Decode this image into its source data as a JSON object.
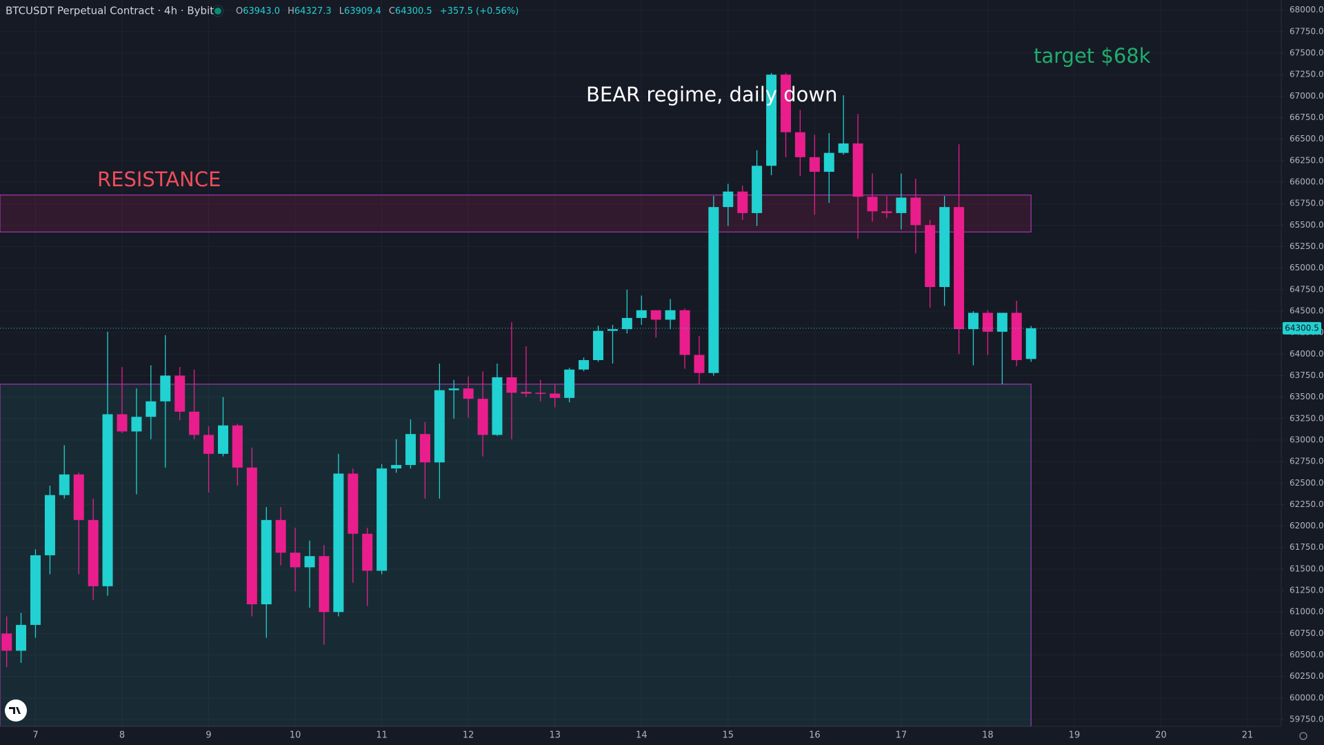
{
  "chart_data": {
    "type": "candlestick",
    "symbol": "BTCUSDT Perpetual Contract · 4h · Bybit",
    "quote": {
      "labels": [
        "O",
        "H",
        "L",
        "C"
      ],
      "values": [
        "63943.0",
        "64327.3",
        "63909.4",
        "64300.5"
      ],
      "change": "+357.5 (+0.56%)"
    },
    "annotations": [
      "BEAR regime, daily down",
      "target $68k"
    ],
    "up_color": "#22d1d1",
    "down_color": "#e91e8c",
    "x": [
      6.667,
      6.833,
      7,
      7.167,
      7.333,
      7.5,
      7.667,
      7.833,
      8,
      8.167,
      8.333,
      8.5,
      8.667,
      8.833,
      9,
      9.167,
      9.333,
      9.5,
      9.667,
      9.833,
      10,
      10.167,
      10.333,
      10.5,
      10.667,
      10.833,
      11,
      11.167,
      11.333,
      11.5,
      11.667,
      11.833,
      12,
      12.167,
      12.333,
      12.5,
      12.667,
      12.833,
      13,
      13.167,
      13.333,
      13.5,
      13.667,
      13.833,
      14,
      14.167,
      14.333,
      14.5,
      14.667,
      14.833,
      15,
      15.167,
      15.333,
      15.5,
      15.667,
      15.833,
      16,
      16.167,
      16.333,
      16.5,
      16.667,
      16.833,
      17,
      17.167,
      17.333,
      17.5,
      17.667,
      17.833,
      18,
      18.167,
      18.333,
      18.5
    ],
    "open": [
      60750,
      60550,
      60850,
      61660,
      62360,
      62600,
      62070,
      61300,
      63300,
      63100,
      63270,
      63450,
      63750,
      63330,
      63060,
      62840,
      63170,
      62680,
      61090,
      62070,
      61690,
      61520,
      61650,
      61000,
      62610,
      61910,
      61480,
      62670,
      62710,
      63070,
      62740,
      63580,
      63600,
      63480,
      63060,
      63730,
      63560,
      63550,
      63540,
      63490,
      63820,
      63930,
      64270,
      64290,
      64420,
      64510,
      64400,
      64510,
      63990,
      63780,
      65710,
      65890,
      65640,
      66190,
      67250,
      66580,
      66290,
      66120,
      66340,
      66450,
      65830,
      65660,
      65640,
      65820,
      65500,
      64780,
      65710,
      64290,
      64480,
      64260,
      64480,
      63943
    ],
    "high": [
      60950,
      60990,
      61730,
      62470,
      62940,
      62620,
      62320,
      64260,
      63850,
      63600,
      63870,
      64220,
      63850,
      63820,
      63160,
      63500,
      63190,
      62910,
      62220,
      62220,
      61980,
      61830,
      61780,
      62840,
      62670,
      61980,
      62720,
      63010,
      63240,
      63210,
      63890,
      63700,
      63740,
      63800,
      63890,
      64370,
      64090,
      63700,
      63650,
      63840,
      63960,
      64330,
      64340,
      64750,
      64680,
      64510,
      64640,
      64530,
      64210,
      65840,
      65980,
      65960,
      66370,
      67270,
      67270,
      66840,
      66550,
      66570,
      67010,
      66790,
      66100,
      65840,
      66100,
      66040,
      65560,
      65840,
      66440,
      64500,
      64510,
      64480,
      64620,
      64327.3
    ],
    "low": [
      60360,
      60410,
      60700,
      61440,
      62320,
      61440,
      61140,
      61190,
      63080,
      62370,
      63010,
      62680,
      63230,
      63010,
      62390,
      62810,
      62470,
      60950,
      60700,
      61540,
      61240,
      61050,
      60620,
      60950,
      61340,
      61070,
      61440,
      62620,
      62670,
      62320,
      62320,
      63250,
      63260,
      62810,
      63050,
      63010,
      63500,
      63450,
      63380,
      63440,
      63800,
      63910,
      63890,
      64240,
      64340,
      64190,
      64290,
      63830,
      63650,
      63750,
      65490,
      65560,
      65490,
      66080,
      66290,
      66070,
      65620,
      65760,
      66320,
      65340,
      65540,
      65580,
      65450,
      65170,
      64540,
      64560,
      64000,
      63870,
      63990,
      63650,
      63860,
      63909.4
    ],
    "close": [
      60550,
      60850,
      61660,
      62360,
      62600,
      62070,
      61300,
      63300,
      63100,
      63270,
      63450,
      63750,
      63330,
      63060,
      62840,
      63170,
      62680,
      61090,
      62070,
      61690,
      61520,
      61650,
      61000,
      62610,
      61910,
      61480,
      62670,
      62710,
      63070,
      62740,
      63580,
      63600,
      63480,
      63060,
      63730,
      63550,
      63540,
      63540,
      63490,
      63820,
      63930,
      64270,
      64290,
      64420,
      64510,
      64400,
      64510,
      63990,
      63780,
      65710,
      65890,
      65640,
      66190,
      67250,
      66580,
      66290,
      66120,
      66340,
      66450,
      65830,
      65660,
      65640,
      65820,
      65500,
      64780,
      65710,
      64290,
      64480,
      64260,
      64480,
      63930,
      64300.5
    ],
    "zones": [
      {
        "name": "RESISTANCE",
        "low": 65420,
        "high": 65850,
        "x_end": 18.5,
        "color": "#e91e63"
      },
      {
        "low": 59670,
        "high": 63650,
        "x_end": 18.5,
        "color": "#26a69a"
      }
    ],
    "last_price": {
      "value": 64300.5,
      "label": "64300.5"
    },
    "xlim": [
      6.59,
      21.39
    ],
    "xticks": [
      7,
      8,
      9,
      10,
      11,
      12,
      13,
      14,
      15,
      16,
      17,
      18,
      19,
      20,
      21
    ],
    "ylim": [
      59670,
      68118
    ],
    "yticks": [
      {
        "value": 59750,
        "label": "59750.0"
      },
      {
        "value": 60000,
        "label": "60000.0"
      },
      {
        "value": 60250,
        "label": "60250.0"
      },
      {
        "value": 60500,
        "label": "60500.0"
      },
      {
        "value": 60750,
        "label": "60750.0"
      },
      {
        "value": 61000,
        "label": "61000.0"
      },
      {
        "value": 61250,
        "label": "61250.0"
      },
      {
        "value": 61500,
        "label": "61500.0"
      },
      {
        "value": 61750,
        "label": "61750.0"
      },
      {
        "value": 62000,
        "label": "62000.0"
      },
      {
        "value": 62250,
        "label": "62250.0"
      },
      {
        "value": 62500,
        "label": "62500.0"
      },
      {
        "value": 62750,
        "label": "62750.0"
      },
      {
        "value": 63000,
        "label": "63000.0"
      },
      {
        "value": 63250,
        "label": "63250.0"
      },
      {
        "value": 63500,
        "label": "63500.0"
      },
      {
        "value": 63750,
        "label": "63750.0"
      },
      {
        "value": 64000,
        "label": "64000.0"
      },
      {
        "value": 64250,
        "label": "64250.0"
      },
      {
        "value": 64500,
        "label": "64500.0"
      },
      {
        "value": 64750,
        "label": "64750.0"
      },
      {
        "value": 65000,
        "label": "65000.0"
      },
      {
        "value": 65250,
        "label": "65250.0"
      },
      {
        "value": 65500,
        "label": "65500.0"
      },
      {
        "value": 65750,
        "label": "65750.0"
      },
      {
        "value": 66000,
        "label": "66000.0"
      },
      {
        "value": 66250,
        "label": "66250.0"
      },
      {
        "value": 66500,
        "label": "66500.0"
      },
      {
        "value": 66750,
        "label": "66750.0"
      },
      {
        "value": 67000,
        "label": "67000.0"
      },
      {
        "value": 67250,
        "label": "67250.0"
      },
      {
        "value": 67500,
        "label": "67500.0"
      },
      {
        "value": 67750,
        "label": "67750.0"
      },
      {
        "value": 68000,
        "label": "68000.0"
      }
    ],
    "grid": true
  }
}
